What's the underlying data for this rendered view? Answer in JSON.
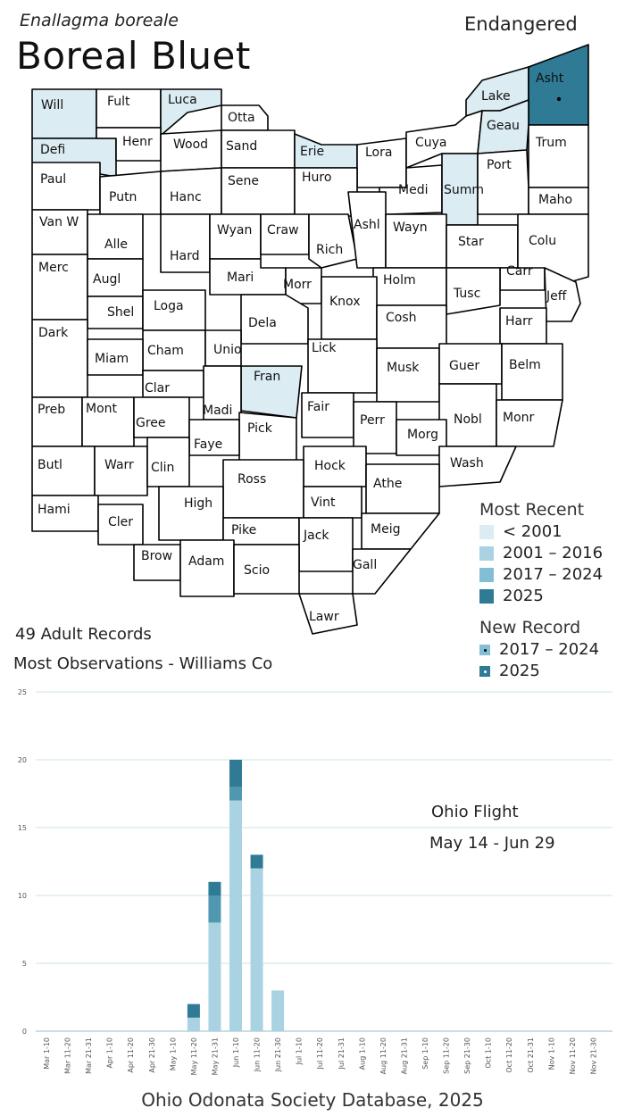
{
  "header": {
    "latin_name": "Enallagma boreale",
    "common_name": "Boreal Bluet",
    "status": "Endangered"
  },
  "colors": {
    "lt2001": "#dcecf3",
    "r2001_2016": "#a9d3e2",
    "r2017_2024": "#82bfd5",
    "r2025": "#2f7a94",
    "white": "#ffffff"
  },
  "counties": [
    {
      "name": "Will",
      "period": "lt2001"
    },
    {
      "name": "Fult",
      "period": "none"
    },
    {
      "name": "Luca",
      "period": "lt2001"
    },
    {
      "name": "Otta",
      "period": "none"
    },
    {
      "name": "Lake",
      "period": "lt2001"
    },
    {
      "name": "Asht",
      "period": "2025",
      "new_record": "2025"
    },
    {
      "name": "Defi",
      "period": "lt2001"
    },
    {
      "name": "Henr",
      "period": "none"
    },
    {
      "name": "Wood",
      "period": "none"
    },
    {
      "name": "Sand",
      "period": "none"
    },
    {
      "name": "Erie",
      "period": "lt2001"
    },
    {
      "name": "Lora",
      "period": "none"
    },
    {
      "name": "Cuya",
      "period": "none"
    },
    {
      "name": "Geau",
      "period": "lt2001"
    },
    {
      "name": "Trum",
      "period": "none"
    },
    {
      "name": "Paul",
      "period": "none"
    },
    {
      "name": "Putn",
      "period": "none"
    },
    {
      "name": "Hanc",
      "period": "none"
    },
    {
      "name": "Sene",
      "period": "none"
    },
    {
      "name": "Huro",
      "period": "none"
    },
    {
      "name": "Medi",
      "period": "none"
    },
    {
      "name": "Summ",
      "period": "lt2001"
    },
    {
      "name": "Port",
      "period": "none"
    },
    {
      "name": "Maho",
      "period": "none"
    },
    {
      "name": "Van W",
      "period": "none"
    },
    {
      "name": "Alle",
      "period": "none"
    },
    {
      "name": "Hard",
      "period": "none"
    },
    {
      "name": "Wyan",
      "period": "none"
    },
    {
      "name": "Craw",
      "period": "none"
    },
    {
      "name": "Rich",
      "period": "none"
    },
    {
      "name": "Ashl",
      "period": "none"
    },
    {
      "name": "Wayn",
      "period": "none"
    },
    {
      "name": "Star",
      "period": "none"
    },
    {
      "name": "Colu",
      "period": "none"
    },
    {
      "name": "Merc",
      "period": "none"
    },
    {
      "name": "Augl",
      "period": "none"
    },
    {
      "name": "Mari",
      "period": "none"
    },
    {
      "name": "Morr",
      "period": "none"
    },
    {
      "name": "Holm",
      "period": "none"
    },
    {
      "name": "Carr",
      "period": "none"
    },
    {
      "name": "Tusc",
      "period": "none"
    },
    {
      "name": "Jeff",
      "period": "none"
    },
    {
      "name": "Shel",
      "period": "none"
    },
    {
      "name": "Loga",
      "period": "none"
    },
    {
      "name": "Knox",
      "period": "none"
    },
    {
      "name": "Dela",
      "period": "none"
    },
    {
      "name": "Cosh",
      "period": "none"
    },
    {
      "name": "Harr",
      "period": "none"
    },
    {
      "name": "Dark",
      "period": "none"
    },
    {
      "name": "Cham",
      "period": "none"
    },
    {
      "name": "Unio",
      "period": "none"
    },
    {
      "name": "Lick",
      "period": "none"
    },
    {
      "name": "Miam",
      "period": "none"
    },
    {
      "name": "Musk",
      "period": "none"
    },
    {
      "name": "Guer",
      "period": "none"
    },
    {
      "name": "Belm",
      "period": "none"
    },
    {
      "name": "Fran",
      "period": "lt2001"
    },
    {
      "name": "Clar",
      "period": "none"
    },
    {
      "name": "Madi",
      "period": "none"
    },
    {
      "name": "Fair",
      "period": "none"
    },
    {
      "name": "Preb",
      "period": "none"
    },
    {
      "name": "Mont",
      "period": "none"
    },
    {
      "name": "Gree",
      "period": "none"
    },
    {
      "name": "Perr",
      "period": "none"
    },
    {
      "name": "Nobl",
      "period": "none"
    },
    {
      "name": "Monr",
      "period": "none"
    },
    {
      "name": "Morg",
      "period": "none"
    },
    {
      "name": "Pick",
      "period": "none"
    },
    {
      "name": "Faye",
      "period": "none"
    },
    {
      "name": "Butl",
      "period": "none"
    },
    {
      "name": "Warr",
      "period": "none"
    },
    {
      "name": "Clin",
      "period": "none"
    },
    {
      "name": "Wash",
      "period": "none"
    },
    {
      "name": "Hock",
      "period": "none"
    },
    {
      "name": "Ross",
      "period": "none"
    },
    {
      "name": "Athe",
      "period": "none"
    },
    {
      "name": "Hami",
      "period": "none"
    },
    {
      "name": "Cler",
      "period": "none"
    },
    {
      "name": "High",
      "period": "none"
    },
    {
      "name": "Vint",
      "period": "none"
    },
    {
      "name": "Pike",
      "period": "none"
    },
    {
      "name": "Jack",
      "period": "none"
    },
    {
      "name": "Meig",
      "period": "none"
    },
    {
      "name": "Brow",
      "period": "none"
    },
    {
      "name": "Adam",
      "period": "none"
    },
    {
      "name": "Scio",
      "period": "none"
    },
    {
      "name": "Gall",
      "period": "none"
    },
    {
      "name": "Lawr",
      "period": "none"
    }
  ],
  "legend": {
    "most_recent_title": "Most Recent",
    "most_recent_items": [
      {
        "label": "< 2001",
        "color": "#dcecf3"
      },
      {
        "label": "2001 – 2016",
        "color": "#a9d3e2"
      },
      {
        "label": "2017 – 2024",
        "color": "#82bfd5"
      },
      {
        "label": "2025",
        "color": "#2f7a94"
      }
    ],
    "new_record_title": "New Record",
    "new_record_items": [
      {
        "label": "2017 – 2024",
        "color": "#82bfd5"
      },
      {
        "label": "2025",
        "color": "#2f7a94"
      }
    ]
  },
  "summary": {
    "records": "49 Adult Records",
    "most_observations": "Most Observations - Williams Co"
  },
  "chart_data": {
    "type": "bar",
    "stacked": true,
    "categories": [
      "Mar 1-10",
      "Mar 11-20",
      "Mar 21-31",
      "Apr 1-10",
      "Apr 11-20",
      "Apr 21-30",
      "May 1-10",
      "May 11-20",
      "May 21-31",
      "Jun 1-10",
      "Jun 11-20",
      "Jun 21-30",
      "Jul 1-10",
      "Jul 11-20",
      "Jul 21-31",
      "Aug 1-10",
      "Aug 11-20",
      "Aug 21-31",
      "Sep 1-10",
      "Sep 11-20",
      "Sep 21-30",
      "Oct 1-10",
      "Oct 11-20",
      "Oct 21-31",
      "Nov 1-10",
      "Nov 11-20",
      "Nov 21-30"
    ],
    "series": [
      {
        "values": [
          0,
          0,
          0,
          0,
          0,
          0,
          0,
          1,
          8,
          17,
          12,
          3,
          0,
          0,
          0,
          0,
          0,
          0,
          0,
          0,
          0,
          0,
          0,
          0,
          0,
          0,
          0
        ],
        "color": "#a9d3e2"
      },
      {
        "values": [
          0,
          0,
          0,
          0,
          0,
          0,
          0,
          0,
          2,
          1,
          0,
          0,
          0,
          0,
          0,
          0,
          0,
          0,
          0,
          0,
          0,
          0,
          0,
          0,
          0,
          0,
          0
        ],
        "color": "#4f98b0"
      },
      {
        "values": [
          0,
          0,
          0,
          0,
          0,
          0,
          0,
          1,
          1,
          2,
          1,
          0,
          0,
          0,
          0,
          0,
          0,
          0,
          0,
          0,
          0,
          0,
          0,
          0,
          0,
          0,
          0
        ],
        "color": "#2f7a94"
      }
    ],
    "y_ticks": [
      0,
      5,
      10,
      15,
      20,
      25
    ],
    "ylim": [
      0,
      25
    ],
    "grid": true,
    "annotation_title": "Ohio Flight",
    "annotation_range": "May 14 - Jun 29"
  },
  "footer": "Ohio Odonata Society Database, 2025"
}
